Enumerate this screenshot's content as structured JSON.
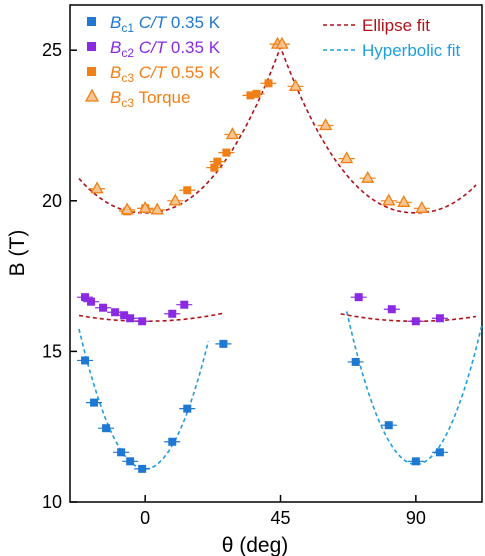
{
  "chart_data": {
    "type": "scatter",
    "xlabel": "θ (deg)",
    "ylabel": "B (T)",
    "xlim": [
      -25,
      112
    ],
    "ylim": [
      10,
      26.5
    ],
    "xticks": [
      0,
      45,
      90
    ],
    "yticks": [
      10,
      15,
      20,
      25
    ],
    "legend": {
      "placement": "top",
      "markers": [
        {
          "label_main": "B",
          "label_sub": "c1",
          "label_rest": " C/T 0.35 K",
          "marker": "square",
          "color": "#1f78d1"
        },
        {
          "label_main": "B",
          "label_sub": "c2",
          "label_rest": " C/T 0.35 K",
          "marker": "square",
          "color": "#8a2be2"
        },
        {
          "label_main": "B",
          "label_sub": "c3",
          "label_rest": " C/T 0.55 K",
          "marker": "square",
          "color": "#f07f16"
        },
        {
          "label_main": "B",
          "label_sub": "c3",
          "label_rest": " Torque",
          "marker": "triangle",
          "color": "#f07f16"
        }
      ],
      "lines": [
        {
          "label": "Ellipse fit",
          "color": "#b0121b"
        },
        {
          "label": "Hyperbolic fit",
          "color": "#1e9ee0"
        }
      ]
    },
    "series": [
      {
        "name": "Bc1 C/T 0.35 K",
        "marker": "square",
        "color": "#1f78d1",
        "points": [
          [
            -20,
            14.7
          ],
          [
            -17,
            13.3
          ],
          [
            -13,
            12.45
          ],
          [
            -8,
            11.65
          ],
          [
            -5,
            11.35
          ],
          [
            -1,
            11.1
          ],
          [
            9,
            12.0
          ],
          [
            14,
            13.1
          ],
          [
            26,
            15.25
          ],
          [
            70,
            14.65
          ],
          [
            81,
            12.55
          ],
          [
            90,
            11.35
          ],
          [
            98,
            11.65
          ]
        ]
      },
      {
        "name": "Bc2 C/T 0.35 K",
        "marker": "square",
        "color": "#8a2be2",
        "points": [
          [
            -20,
            16.8
          ],
          [
            -18,
            16.65
          ],
          [
            -14,
            16.45
          ],
          [
            -10,
            16.3
          ],
          [
            -7,
            16.2
          ],
          [
            -5,
            16.1
          ],
          [
            -1,
            16.0
          ],
          [
            9,
            16.25
          ],
          [
            13,
            16.55
          ],
          [
            71,
            16.8
          ],
          [
            82,
            16.4
          ],
          [
            90,
            16.0
          ],
          [
            98,
            16.1
          ]
        ]
      },
      {
        "name": "Bc3 C/T 0.55 K",
        "marker": "square",
        "color": "#f07f16",
        "points": [
          [
            -6,
            19.65
          ],
          [
            0,
            19.75
          ],
          [
            14,
            20.35
          ],
          [
            23,
            21.1
          ],
          [
            24,
            21.3
          ],
          [
            27,
            21.6
          ],
          [
            35,
            23.5
          ],
          [
            37,
            23.55
          ],
          [
            41,
            23.9
          ]
        ]
      },
      {
        "name": "Bc3 Torque",
        "marker": "triangle",
        "color": "#f07f16",
        "points": [
          [
            -16,
            20.4
          ],
          [
            -6,
            19.7
          ],
          [
            0,
            19.75
          ],
          [
            4,
            19.7
          ],
          [
            10,
            20.0
          ],
          [
            29,
            22.2
          ],
          [
            44,
            25.2
          ],
          [
            45.5,
            25.2
          ],
          [
            50,
            23.8
          ],
          [
            60,
            22.5
          ],
          [
            67,
            21.4
          ],
          [
            74,
            20.75
          ],
          [
            81,
            20.0
          ],
          [
            86,
            19.95
          ],
          [
            92,
            19.75
          ]
        ]
      }
    ],
    "fits": [
      {
        "name": "ellipse-fit-top",
        "kind": "cusp",
        "color": "#b0121b",
        "x_range": [
          -22,
          110
        ],
        "base": 19.6,
        "cusp_value": 25.1,
        "center": 45
      },
      {
        "name": "ellipse-fit-mid-left",
        "kind": "ellipse",
        "color": "#b0121b",
        "x_range": [
          -22,
          26
        ],
        "min": 16.0,
        "width": 55
      },
      {
        "name": "ellipse-fit-mid-right",
        "kind": "ellipse",
        "color": "#b0121b",
        "x_range": [
          65,
          110
        ],
        "min": 16.0,
        "center": 90,
        "width": 55
      },
      {
        "name": "hyperbolic-fit-left",
        "kind": "parabola",
        "color": "#1e9ee0",
        "x_range": [
          -22,
          21
        ],
        "min": 11.1,
        "center": 0,
        "curvature": 0.0096
      },
      {
        "name": "hyperbolic-fit-right",
        "kind": "parabola",
        "color": "#1e9ee0",
        "x_range": [
          67,
          112
        ],
        "min": 11.25,
        "center": 90,
        "curvature": 0.0096
      }
    ]
  }
}
